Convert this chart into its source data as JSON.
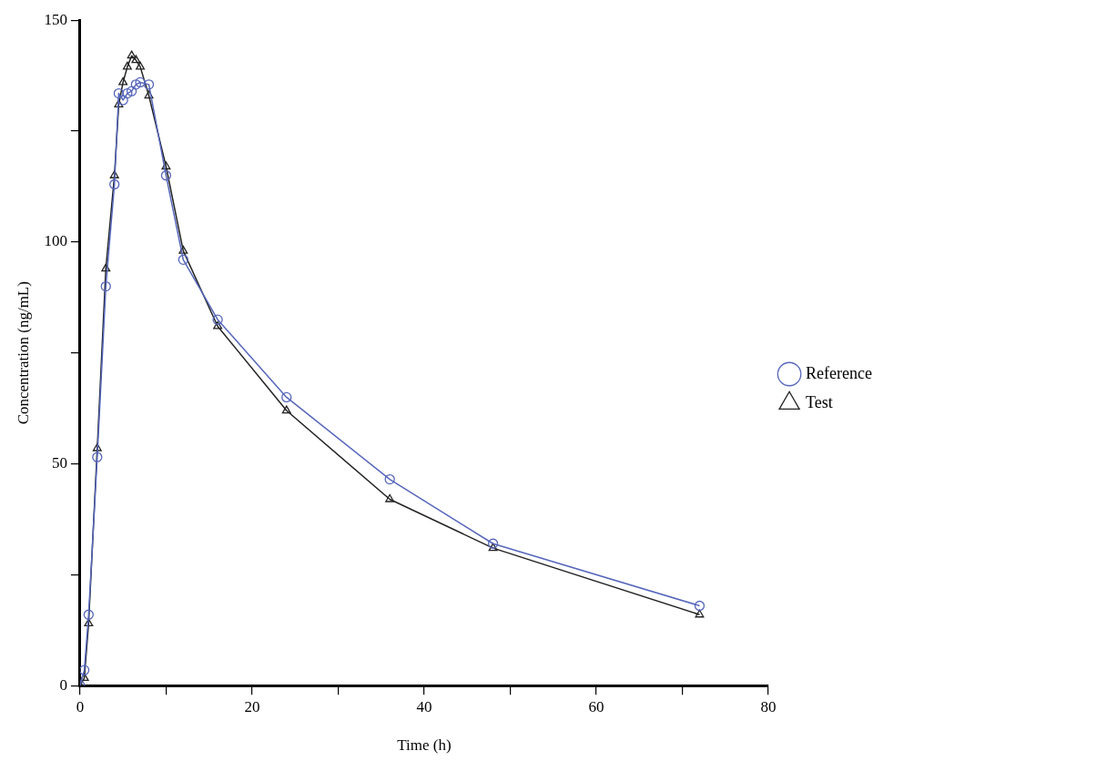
{
  "chart_data": {
    "type": "line",
    "xlabel": "Time (h)",
    "ylabel": "Concentration (ng/mL)",
    "x": [
      0,
      0.5,
      1,
      2,
      3,
      4,
      4.5,
      5,
      5.5,
      6,
      6.5,
      7,
      8,
      10,
      12,
      16,
      24,
      36,
      48,
      72
    ],
    "series": [
      {
        "name": "Reference",
        "color": "#5566bb",
        "marker": "circle",
        "values": [
          0,
          3.5,
          16,
          51.5,
          90,
          113,
          133.5,
          132,
          133.5,
          134,
          135.5,
          136,
          135.5,
          115,
          96,
          82.5,
          65,
          46.5,
          32,
          18
        ]
      },
      {
        "name": "Test",
        "color": "#222222",
        "marker": "triangle",
        "values": [
          0,
          1.7,
          14,
          53.5,
          94,
          115,
          131,
          136,
          139.5,
          142,
          141,
          139.5,
          133,
          117,
          98,
          81,
          62,
          42,
          31,
          16
        ]
      }
    ],
    "xlim": [
      0,
      80
    ],
    "xticks": [
      0,
      {
        "value": 10,
        "label": null
      },
      20,
      {
        "value": 30,
        "label": null
      },
      40,
      {
        "value": 50,
        "label": null
      },
      60,
      {
        "value": 70,
        "label": null
      },
      80
    ],
    "ylim": [
      0,
      150
    ],
    "yticks": [
      0,
      {
        "value": 25,
        "label": null
      },
      50,
      {
        "value": 75,
        "label": null
      },
      100,
      {
        "value": 125,
        "label": null
      },
      150
    ],
    "grid": false,
    "legend": "right",
    "line_style": "solid"
  }
}
